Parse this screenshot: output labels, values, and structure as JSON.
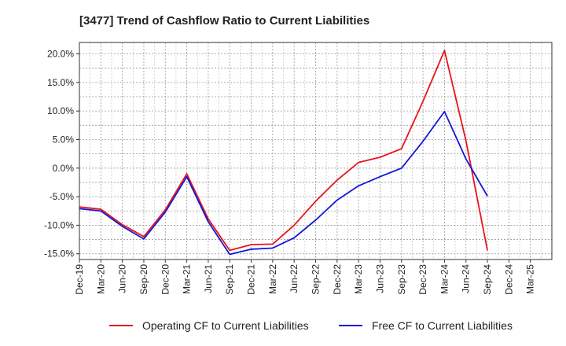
{
  "chart_data": {
    "type": "line",
    "title": "[3477]  Trend of Cashflow Ratio to Current Liabilities",
    "xlabel": "",
    "ylabel": "",
    "categories": [
      "Dec-19",
      "Mar-20",
      "Jun-20",
      "Sep-20",
      "Dec-20",
      "Mar-21",
      "Jun-21",
      "Sep-21",
      "Dec-21",
      "Mar-22",
      "Jun-22",
      "Sep-22",
      "Dec-22",
      "Mar-23",
      "Jun-23",
      "Sep-23",
      "Dec-23",
      "Mar-24",
      "Jun-24",
      "Sep-24",
      "Dec-24",
      "Mar-25"
    ],
    "series": [
      {
        "name": "Operating CF to Current Liabilities",
        "color": "#e8141a",
        "values": [
          -6.8,
          -7.2,
          -9.9,
          -12.0,
          -7.3,
          -1.0,
          -8.9,
          -14.4,
          -13.4,
          -13.3,
          -10.0,
          -5.8,
          -2.1,
          1.0,
          1.9,
          3.4,
          11.7,
          20.6,
          4.8,
          -14.4,
          null,
          null
        ]
      },
      {
        "name": "Free CF to Current Liabilities",
        "color": "#1616d6",
        "values": [
          -7.1,
          -7.5,
          -10.2,
          -12.4,
          -7.7,
          -1.5,
          -9.4,
          -15.1,
          -14.2,
          -14.0,
          -12.2,
          -9.1,
          -5.6,
          -3.1,
          -1.5,
          0.0,
          4.7,
          9.9,
          1.6,
          -4.9,
          null,
          null
        ]
      }
    ],
    "ylim": [
      -16,
      22
    ],
    "yticks": [
      -15,
      -10,
      -5,
      0,
      5,
      10,
      15,
      20
    ],
    "ytick_labels": [
      "-15.0%",
      "-10.0%",
      "-5.0%",
      "0.0%",
      "5.0%",
      "10.0%",
      "15.0%",
      "20.0%"
    ],
    "grid": true,
    "legend_placement": "bottom-center"
  }
}
